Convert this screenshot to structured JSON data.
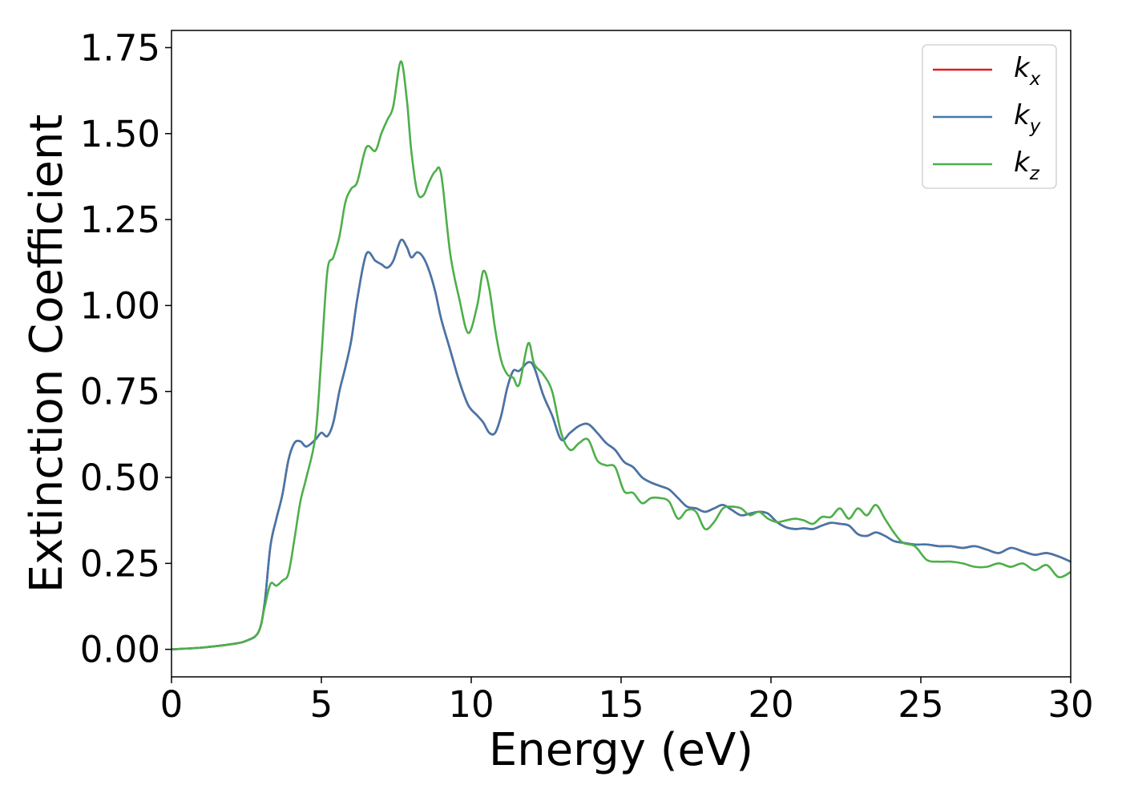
{
  "chart_data": {
    "type": "line",
    "title": "",
    "xlabel": "Energy (eV)",
    "ylabel": "Extinction Coefficient",
    "xlim": [
      0,
      30
    ],
    "ylim": [
      -0.08,
      1.8
    ],
    "xticks": [
      0,
      5,
      10,
      15,
      20,
      25,
      30
    ],
    "xtick_labels": [
      "0",
      "5",
      "10",
      "15",
      "20",
      "25",
      "30"
    ],
    "yticks": [
      0.0,
      0.25,
      0.5,
      0.75,
      1.0,
      1.25,
      1.5,
      1.75
    ],
    "ytick_labels": [
      "0.00",
      "0.25",
      "0.50",
      "0.75",
      "1.00",
      "1.25",
      "1.50",
      "1.75"
    ],
    "grid": false,
    "legend_position": "top-right",
    "series": [
      {
        "name": "k_x",
        "legend_base": "k",
        "legend_sub": "x",
        "color": "#e41a1c",
        "x": [
          0,
          1,
          2,
          2.5,
          2.9,
          3.1,
          3.3,
          3.5,
          3.7,
          3.9,
          4.1,
          4.3,
          4.5,
          4.8,
          5.0,
          5.2,
          5.4,
          5.6,
          5.8,
          6.0,
          6.2,
          6.5,
          6.8,
          7.0,
          7.2,
          7.4,
          7.65,
          7.85,
          8.0,
          8.2,
          8.4,
          8.6,
          8.8,
          9.0,
          9.3,
          9.6,
          9.9,
          10.2,
          10.4,
          10.6,
          10.8,
          11.0,
          11.2,
          11.4,
          11.6,
          11.9,
          12.1,
          12.4,
          12.7,
          13.0,
          13.3,
          13.6,
          13.9,
          14.2,
          14.5,
          14.8,
          15.1,
          15.4,
          15.7,
          16.0,
          16.3,
          16.6,
          16.9,
          17.2,
          17.5,
          17.8,
          18.1,
          18.4,
          18.7,
          19.0,
          19.3,
          19.6,
          19.9,
          20.2,
          20.5,
          20.8,
          21.1,
          21.4,
          21.7,
          22.0,
          22.3,
          22.6,
          22.9,
          23.2,
          23.5,
          23.8,
          24.1,
          24.4,
          24.8,
          25.2,
          25.6,
          26.0,
          26.4,
          26.8,
          27.2,
          27.6,
          28.0,
          28.4,
          28.8,
          29.2,
          29.6,
          30.0
        ],
        "y": [
          0.0,
          0.005,
          0.015,
          0.025,
          0.05,
          0.13,
          0.3,
          0.38,
          0.45,
          0.55,
          0.6,
          0.605,
          0.59,
          0.61,
          0.63,
          0.62,
          0.66,
          0.75,
          0.82,
          0.9,
          1.02,
          1.15,
          1.13,
          1.12,
          1.11,
          1.13,
          1.19,
          1.17,
          1.14,
          1.155,
          1.14,
          1.1,
          1.04,
          0.96,
          0.87,
          0.78,
          0.71,
          0.68,
          0.66,
          0.63,
          0.63,
          0.68,
          0.76,
          0.81,
          0.81,
          0.835,
          0.82,
          0.74,
          0.68,
          0.61,
          0.63,
          0.65,
          0.655,
          0.63,
          0.6,
          0.58,
          0.545,
          0.53,
          0.5,
          0.485,
          0.475,
          0.465,
          0.44,
          0.415,
          0.41,
          0.4,
          0.41,
          0.42,
          0.405,
          0.39,
          0.395,
          0.4,
          0.395,
          0.37,
          0.355,
          0.35,
          0.352,
          0.35,
          0.36,
          0.368,
          0.365,
          0.36,
          0.335,
          0.33,
          0.34,
          0.33,
          0.315,
          0.31,
          0.305,
          0.305,
          0.3,
          0.3,
          0.295,
          0.3,
          0.29,
          0.28,
          0.295,
          0.285,
          0.275,
          0.28,
          0.27,
          0.255
        ]
      },
      {
        "name": "k_y",
        "legend_base": "k",
        "legend_sub": "y",
        "color": "#4477aa",
        "x": [
          0,
          1,
          2,
          2.5,
          2.9,
          3.1,
          3.3,
          3.5,
          3.7,
          3.9,
          4.1,
          4.3,
          4.5,
          4.8,
          5.0,
          5.2,
          5.4,
          5.6,
          5.8,
          6.0,
          6.2,
          6.5,
          6.8,
          7.0,
          7.2,
          7.4,
          7.65,
          7.85,
          8.0,
          8.2,
          8.4,
          8.6,
          8.8,
          9.0,
          9.3,
          9.6,
          9.9,
          10.2,
          10.4,
          10.6,
          10.8,
          11.0,
          11.2,
          11.4,
          11.6,
          11.9,
          12.1,
          12.4,
          12.7,
          13.0,
          13.3,
          13.6,
          13.9,
          14.2,
          14.5,
          14.8,
          15.1,
          15.4,
          15.7,
          16.0,
          16.3,
          16.6,
          16.9,
          17.2,
          17.5,
          17.8,
          18.1,
          18.4,
          18.7,
          19.0,
          19.3,
          19.6,
          19.9,
          20.2,
          20.5,
          20.8,
          21.1,
          21.4,
          21.7,
          22.0,
          22.3,
          22.6,
          22.9,
          23.2,
          23.5,
          23.8,
          24.1,
          24.4,
          24.8,
          25.2,
          25.6,
          26.0,
          26.4,
          26.8,
          27.2,
          27.6,
          28.0,
          28.4,
          28.8,
          29.2,
          29.6,
          30.0
        ],
        "y": [
          0.0,
          0.005,
          0.015,
          0.025,
          0.05,
          0.13,
          0.3,
          0.38,
          0.45,
          0.55,
          0.6,
          0.605,
          0.59,
          0.61,
          0.63,
          0.62,
          0.66,
          0.75,
          0.82,
          0.9,
          1.02,
          1.15,
          1.13,
          1.12,
          1.11,
          1.13,
          1.19,
          1.17,
          1.14,
          1.155,
          1.14,
          1.1,
          1.04,
          0.96,
          0.87,
          0.78,
          0.71,
          0.68,
          0.66,
          0.63,
          0.63,
          0.68,
          0.76,
          0.81,
          0.81,
          0.835,
          0.82,
          0.74,
          0.68,
          0.61,
          0.63,
          0.65,
          0.655,
          0.63,
          0.6,
          0.58,
          0.545,
          0.53,
          0.5,
          0.485,
          0.475,
          0.465,
          0.44,
          0.415,
          0.41,
          0.4,
          0.41,
          0.42,
          0.405,
          0.39,
          0.395,
          0.4,
          0.395,
          0.37,
          0.355,
          0.35,
          0.352,
          0.35,
          0.36,
          0.368,
          0.365,
          0.36,
          0.335,
          0.33,
          0.34,
          0.33,
          0.315,
          0.31,
          0.305,
          0.305,
          0.3,
          0.3,
          0.295,
          0.3,
          0.29,
          0.28,
          0.295,
          0.285,
          0.275,
          0.28,
          0.27,
          0.255
        ]
      },
      {
        "name": "k_z",
        "legend_base": "k",
        "legend_sub": "z",
        "color": "#4daf4a",
        "x": [
          0,
          1,
          2,
          2.5,
          2.9,
          3.1,
          3.3,
          3.5,
          3.7,
          3.9,
          4.1,
          4.3,
          4.5,
          4.8,
          5.0,
          5.2,
          5.4,
          5.6,
          5.8,
          6.0,
          6.2,
          6.5,
          6.8,
          7.0,
          7.2,
          7.4,
          7.65,
          7.85,
          8.0,
          8.2,
          8.4,
          8.6,
          8.8,
          9.0,
          9.3,
          9.6,
          9.9,
          10.2,
          10.4,
          10.6,
          10.8,
          11.0,
          11.2,
          11.4,
          11.6,
          11.9,
          12.1,
          12.4,
          12.7,
          13.0,
          13.3,
          13.6,
          13.9,
          14.2,
          14.5,
          14.8,
          15.1,
          15.4,
          15.7,
          16.0,
          16.3,
          16.6,
          16.9,
          17.2,
          17.5,
          17.8,
          18.1,
          18.4,
          18.7,
          19.0,
          19.3,
          19.6,
          19.9,
          20.2,
          20.5,
          20.8,
          21.1,
          21.4,
          21.7,
          22.0,
          22.3,
          22.6,
          22.9,
          23.2,
          23.5,
          23.8,
          24.1,
          24.4,
          24.8,
          25.2,
          25.6,
          26.0,
          26.4,
          26.8,
          27.2,
          27.6,
          28.0,
          28.4,
          28.8,
          29.2,
          29.6,
          30.0
        ],
        "y": [
          0.0,
          0.005,
          0.015,
          0.025,
          0.05,
          0.12,
          0.19,
          0.185,
          0.2,
          0.22,
          0.32,
          0.43,
          0.5,
          0.62,
          0.85,
          1.1,
          1.14,
          1.2,
          1.3,
          1.34,
          1.36,
          1.46,
          1.45,
          1.5,
          1.54,
          1.58,
          1.71,
          1.6,
          1.45,
          1.33,
          1.32,
          1.36,
          1.39,
          1.38,
          1.15,
          1.02,
          0.92,
          1.0,
          1.1,
          1.05,
          0.93,
          0.84,
          0.8,
          0.79,
          0.77,
          0.89,
          0.83,
          0.8,
          0.75,
          0.63,
          0.58,
          0.6,
          0.61,
          0.55,
          0.535,
          0.53,
          0.46,
          0.455,
          0.425,
          0.44,
          0.44,
          0.43,
          0.38,
          0.405,
          0.4,
          0.35,
          0.37,
          0.41,
          0.415,
          0.41,
          0.39,
          0.4,
          0.38,
          0.37,
          0.375,
          0.38,
          0.375,
          0.365,
          0.385,
          0.385,
          0.41,
          0.38,
          0.41,
          0.39,
          0.42,
          0.38,
          0.34,
          0.31,
          0.3,
          0.26,
          0.255,
          0.255,
          0.25,
          0.24,
          0.24,
          0.25,
          0.24,
          0.25,
          0.23,
          0.245,
          0.21,
          0.225
        ]
      }
    ]
  }
}
